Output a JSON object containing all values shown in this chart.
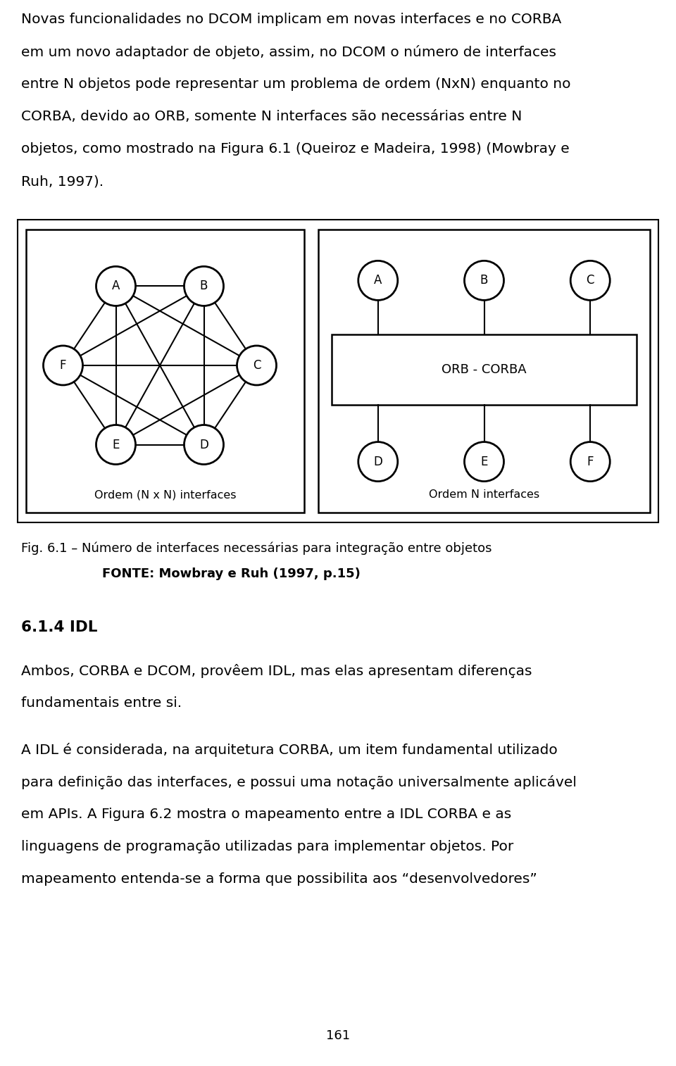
{
  "bg_color": "#ffffff",
  "text_color": "#000000",
  "font_size_body": 14.5,
  "font_size_caption": 13.0,
  "font_size_heading": 15.5,
  "font_size_node": 12,
  "font_size_page": 13,
  "para1_lines": [
    "Novas funcionalidades no DCOM implicam em novas interfaces e no CORBA",
    "em um novo adaptador de objeto, assim, no DCOM o número de interfaces",
    "entre N objetos pode representar um problema de ordem (NxN) enquanto no",
    "CORBA, devido ao ORB, somente N interfaces são necessárias entre N",
    "objetos, como mostrado na Figura 6.1 (Queiroz e Madeira, 1998) (Mowbray e",
    "Ruh, 1997)."
  ],
  "caption_line1": "Fig. 6.1 – Número de interfaces necessárias para integração entre objetos",
  "caption_line2": "FONTE: Mowbray e Ruh (1997, p.15)",
  "heading": "6.1.4 IDL",
  "para2_lines": [
    "Ambos, CORBA e DCOM, provêem IDL, mas elas apresentam diferenças",
    "fundamentais entre si."
  ],
  "para3_lines": [
    "A IDL é considerada, na arquitetura CORBA, um item fundamental utilizado",
    "para definição das interfaces, e possui uma notação universalmente aplicável",
    "em APIs. A Figura 6.2 mostra o mapeamento entre a IDL CORBA e as",
    "linguagens de programação utilizadas para implementar objetos. Por",
    "mapeamento entenda-se a forma que possibilita aos “desenvolvedores”"
  ],
  "page_number": "161",
  "orb_label": "ORB - CORBA",
  "left_label": "Ordem (N x N) interfaces",
  "right_label": "Ordem N interfaces"
}
